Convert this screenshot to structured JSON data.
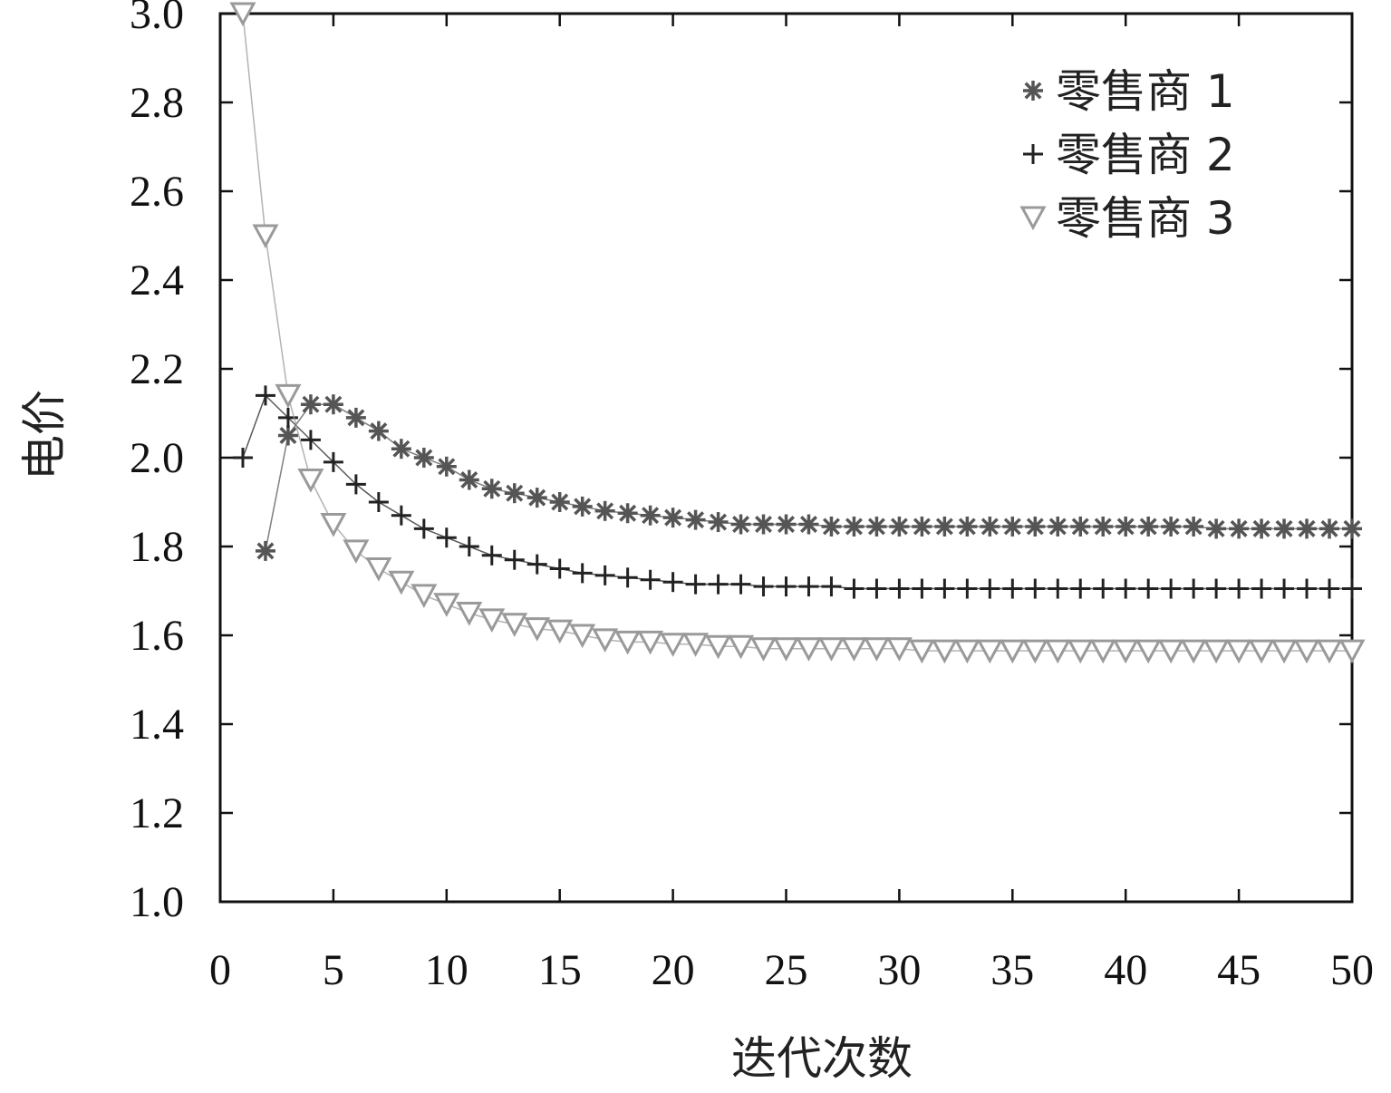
{
  "chart_data": {
    "type": "scatter",
    "xlabel": "迭代次数",
    "ylabel": "电价",
    "xlim": [
      0,
      50
    ],
    "ylim": [
      1.0,
      3.0
    ],
    "x_ticks": [
      "0",
      "5",
      "10",
      "15",
      "20",
      "25",
      "30",
      "35",
      "40",
      "45",
      "50"
    ],
    "y_ticks": [
      "1.0",
      "1.2",
      "1.4",
      "1.6",
      "1.8",
      "2.0",
      "2.2",
      "2.4",
      "2.6",
      "2.8",
      "3.0"
    ],
    "legend_position": "top-right",
    "grid": false,
    "series": [
      {
        "name": "零售商 1",
        "marker": "asterisk",
        "color": "#555555",
        "x": [
          2,
          3,
          4,
          5,
          6,
          7,
          8,
          9,
          10,
          11,
          12,
          13,
          14,
          15,
          16,
          17,
          18,
          19,
          20,
          21,
          22,
          23,
          24,
          25,
          26,
          27,
          28,
          29,
          30,
          31,
          32,
          33,
          34,
          35,
          36,
          37,
          38,
          39,
          40,
          41,
          42,
          43,
          44,
          45,
          46,
          47,
          48,
          49,
          50
        ],
        "y": [
          1.79,
          2.05,
          2.12,
          2.12,
          2.09,
          2.06,
          2.02,
          2.0,
          1.98,
          1.95,
          1.93,
          1.92,
          1.91,
          1.9,
          1.89,
          1.88,
          1.875,
          1.87,
          1.865,
          1.86,
          1.855,
          1.85,
          1.85,
          1.85,
          1.85,
          1.845,
          1.845,
          1.845,
          1.845,
          1.845,
          1.845,
          1.845,
          1.845,
          1.845,
          1.845,
          1.845,
          1.845,
          1.845,
          1.845,
          1.845,
          1.845,
          1.845,
          1.84,
          1.84,
          1.84,
          1.84,
          1.84,
          1.84,
          1.84
        ]
      },
      {
        "name": "零售商 2",
        "marker": "plus",
        "color": "#222222",
        "x": [
          1,
          2,
          3,
          4,
          5,
          6,
          7,
          8,
          9,
          10,
          11,
          12,
          13,
          14,
          15,
          16,
          17,
          18,
          19,
          20,
          21,
          22,
          23,
          24,
          25,
          26,
          27,
          28,
          29,
          30,
          31,
          32,
          33,
          34,
          35,
          36,
          37,
          38,
          39,
          40,
          41,
          42,
          43,
          44,
          45,
          46,
          47,
          48,
          49,
          50
        ],
        "y": [
          2.0,
          2.14,
          2.09,
          2.04,
          1.99,
          1.94,
          1.9,
          1.87,
          1.84,
          1.82,
          1.8,
          1.78,
          1.77,
          1.76,
          1.75,
          1.74,
          1.735,
          1.73,
          1.725,
          1.72,
          1.715,
          1.715,
          1.715,
          1.71,
          1.71,
          1.71,
          1.71,
          1.705,
          1.705,
          1.705,
          1.705,
          1.705,
          1.705,
          1.705,
          1.705,
          1.705,
          1.705,
          1.705,
          1.705,
          1.705,
          1.705,
          1.705,
          1.705,
          1.705,
          1.705,
          1.705,
          1.705,
          1.705,
          1.705,
          1.705
        ]
      },
      {
        "name": "零售商 3",
        "marker": "triangle-down",
        "color": "#9a9a9a",
        "x": [
          1,
          2,
          3,
          4,
          5,
          6,
          7,
          8,
          9,
          10,
          11,
          12,
          13,
          14,
          15,
          16,
          17,
          18,
          19,
          20,
          21,
          22,
          23,
          24,
          25,
          26,
          27,
          28,
          29,
          30,
          31,
          32,
          33,
          34,
          35,
          36,
          37,
          38,
          39,
          40,
          41,
          42,
          43,
          44,
          45,
          46,
          47,
          48,
          49,
          50
        ],
        "y": [
          3.0,
          2.5,
          2.14,
          1.95,
          1.85,
          1.79,
          1.75,
          1.72,
          1.69,
          1.67,
          1.65,
          1.635,
          1.625,
          1.615,
          1.61,
          1.6,
          1.59,
          1.585,
          1.585,
          1.58,
          1.58,
          1.575,
          1.575,
          1.57,
          1.57,
          1.57,
          1.57,
          1.57,
          1.57,
          1.57,
          1.565,
          1.565,
          1.565,
          1.565,
          1.565,
          1.565,
          1.565,
          1.565,
          1.565,
          1.565,
          1.565,
          1.565,
          1.565,
          1.565,
          1.565,
          1.565,
          1.565,
          1.565,
          1.565,
          1.565
        ]
      }
    ]
  }
}
